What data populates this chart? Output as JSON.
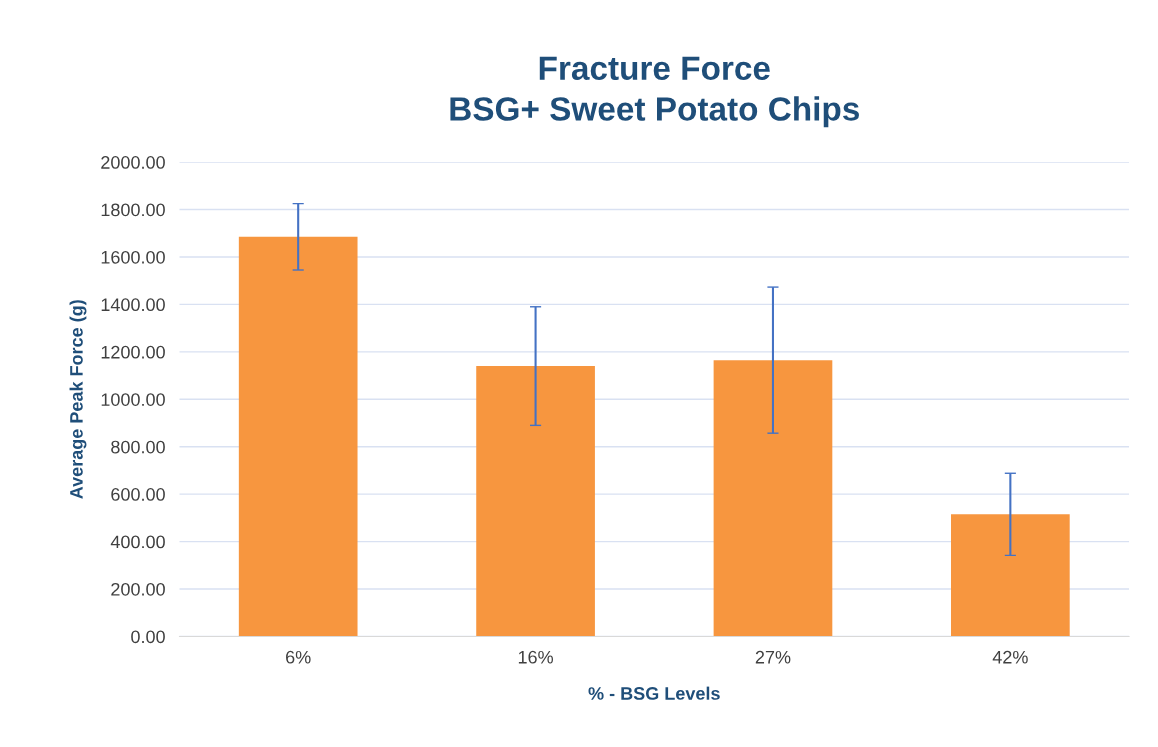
{
  "chart_data": {
    "type": "bar",
    "title": "Fracture Force\nBSG+ Sweet Potato Chips",
    "xlabel": "% - BSG Levels",
    "ylabel": "Average Peak Force (g)",
    "categories": [
      "6%",
      "16%",
      "27%",
      "42%"
    ],
    "values": [
      1685,
      1140,
      1165,
      515
    ],
    "errors": [
      140,
      250,
      308,
      173
    ],
    "color": "#f7963f",
    "ylim": [
      0,
      2000
    ],
    "yticks": [
      {
        "value": 0,
        "label": "0.00"
      },
      {
        "value": 200,
        "label": "200.00"
      },
      {
        "value": 400,
        "label": "400.00"
      },
      {
        "value": 600,
        "label": "600.00"
      },
      {
        "value": 800,
        "label": "800.00"
      },
      {
        "value": 1000,
        "label": "1000.00"
      },
      {
        "value": 1200,
        "label": "1200.00"
      },
      {
        "value": 1400,
        "label": "1400.00"
      },
      {
        "value": 1600,
        "label": "1600.00"
      },
      {
        "value": 1800,
        "label": "1800.00"
      },
      {
        "value": 2000,
        "label": "2000.00"
      }
    ],
    "grid": "y"
  }
}
